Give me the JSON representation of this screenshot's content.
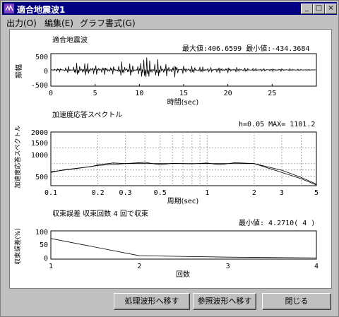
{
  "window": {
    "title": "適合地震波1"
  },
  "title_buttons": [
    "_",
    "□",
    "×"
  ],
  "menu": [
    "出力(O)",
    "編集(E)",
    "グラフ書式(G)"
  ],
  "colors": {
    "titlebar": "#000080",
    "plot_bg": "#ffffff",
    "window_bg": "#c0c0c0"
  },
  "plot1": {
    "title": "適合地震波",
    "stats": "最大値:406.6599  最小値:-434.3684",
    "ylabel": "振幅",
    "xlabel": "時間(sec)",
    "xticks": [
      "0",
      "5",
      "10",
      "15",
      "20",
      "25"
    ],
    "yticks": [
      "500",
      "0",
      "-500"
    ]
  },
  "plot2": {
    "title": "加速度応答スペクトル",
    "info": "h=0.05 MAX= 1101.2",
    "ylabel": "加速度応答スペクトル",
    "xlabel": "周期(sec)",
    "xticks": [
      "0.1",
      "0.2",
      "0.3",
      "0.5",
      "1",
      "2",
      "3",
      "5"
    ],
    "yticks": [
      "2000",
      "1500",
      "1000",
      "500"
    ]
  },
  "plot3": {
    "title": "収束誤差  収束回数 4 回で収束",
    "info": "最小値: 4.2710( 4 )",
    "ylabel": "収束誤差(%)",
    "xlabel": "回数",
    "xticks": [
      "1",
      "2",
      "3",
      "4"
    ],
    "yticks": [
      "100",
      "50",
      "0"
    ]
  },
  "buttons": {
    "process": "処理波形へ移す",
    "reference": "参照波形へ移す",
    "close": "閉じる"
  },
  "chart_data": [
    {
      "type": "line",
      "title": "適合地震波",
      "xlabel": "時間(sec)",
      "ylabel": "振幅",
      "xlim": [
        0,
        30
      ],
      "ylim": [
        -500,
        500
      ],
      "series": [
        {
          "x": [
            0,
            1,
            2,
            3,
            4,
            5,
            6,
            7,
            8,
            9,
            10,
            11,
            12,
            13,
            14,
            15,
            16,
            17,
            18,
            19,
            20,
            21,
            22,
            23,
            24,
            25,
            26,
            27,
            28,
            29,
            30
          ],
          "values": [
            0,
            60,
            -120,
            250,
            -300,
            220,
            -180,
            160,
            -260,
            240,
            -200,
            -430,
            400,
            -250,
            230,
            -150,
            160,
            -140,
            110,
            -120,
            100,
            -90,
            80,
            -70,
            60,
            -60,
            50,
            -40,
            30,
            -20,
            0
          ]
        }
      ]
    },
    {
      "type": "line",
      "title": "加速度応答スペクトル",
      "xlabel": "周期(sec)",
      "ylim": [
        300,
        2000
      ],
      "xlim": [
        0.1,
        5
      ],
      "xscale": "log",
      "series": [
        {
          "x": [
            0.1,
            0.15,
            0.2,
            0.3,
            0.4,
            0.5,
            0.7,
            1,
            1.5,
            2,
            3,
            4,
            5
          ],
          "values": [
            740,
            850,
            940,
            1000,
            1000,
            1000,
            1000,
            1000,
            1000,
            1000,
            790,
            560,
            350
          ]
        },
        {
          "x": [
            0.1,
            0.12,
            0.15,
            0.18,
            0.2,
            0.25,
            0.3,
            0.4,
            0.5,
            0.6,
            0.8,
            1,
            1.2,
            1.5,
            2,
            3,
            4,
            5
          ],
          "values": [
            720,
            800,
            860,
            900,
            960,
            1020,
            1000,
            1040,
            960,
            1010,
            990,
            1020,
            960,
            1030,
            1000,
            720,
            520,
            320
          ]
        }
      ]
    },
    {
      "type": "line",
      "title": "収束誤差",
      "xlabel": "回数",
      "ylabel": "収束誤差(%)",
      "xlim": [
        1,
        4
      ],
      "ylim": [
        0,
        100
      ],
      "series": [
        {
          "x": [
            1,
            2,
            3,
            4
          ],
          "values": [
            73,
            12,
            7,
            4.3
          ]
        }
      ]
    }
  ]
}
